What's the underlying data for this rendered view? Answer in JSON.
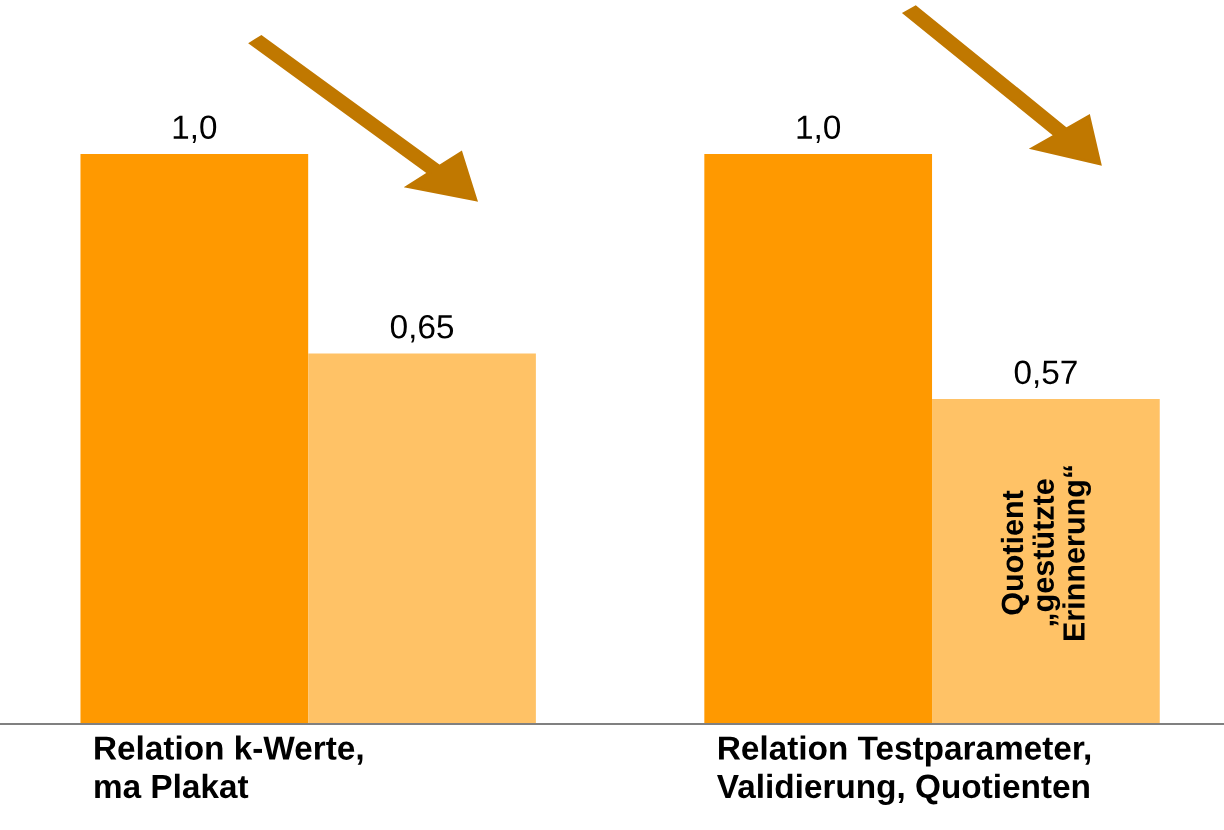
{
  "chart_data": {
    "type": "bar",
    "categories": [
      "Relation k-Werte,\nma Plakat",
      "Relation Testparameter,\nValidierung, Quotienten"
    ],
    "series": [
      {
        "color": "#ff9900",
        "values": [
          1.0,
          1.0
        ],
        "value_labels": [
          "1,0",
          "1,0"
        ]
      },
      {
        "color": "#ffc266",
        "values": [
          0.65,
          0.57
        ],
        "value_labels": [
          "0,65",
          "0,57"
        ]
      }
    ],
    "tick_labels": "x",
    "annotations": [
      "Quotient\n„gestützte\nErinnerung“"
    ]
  }
}
